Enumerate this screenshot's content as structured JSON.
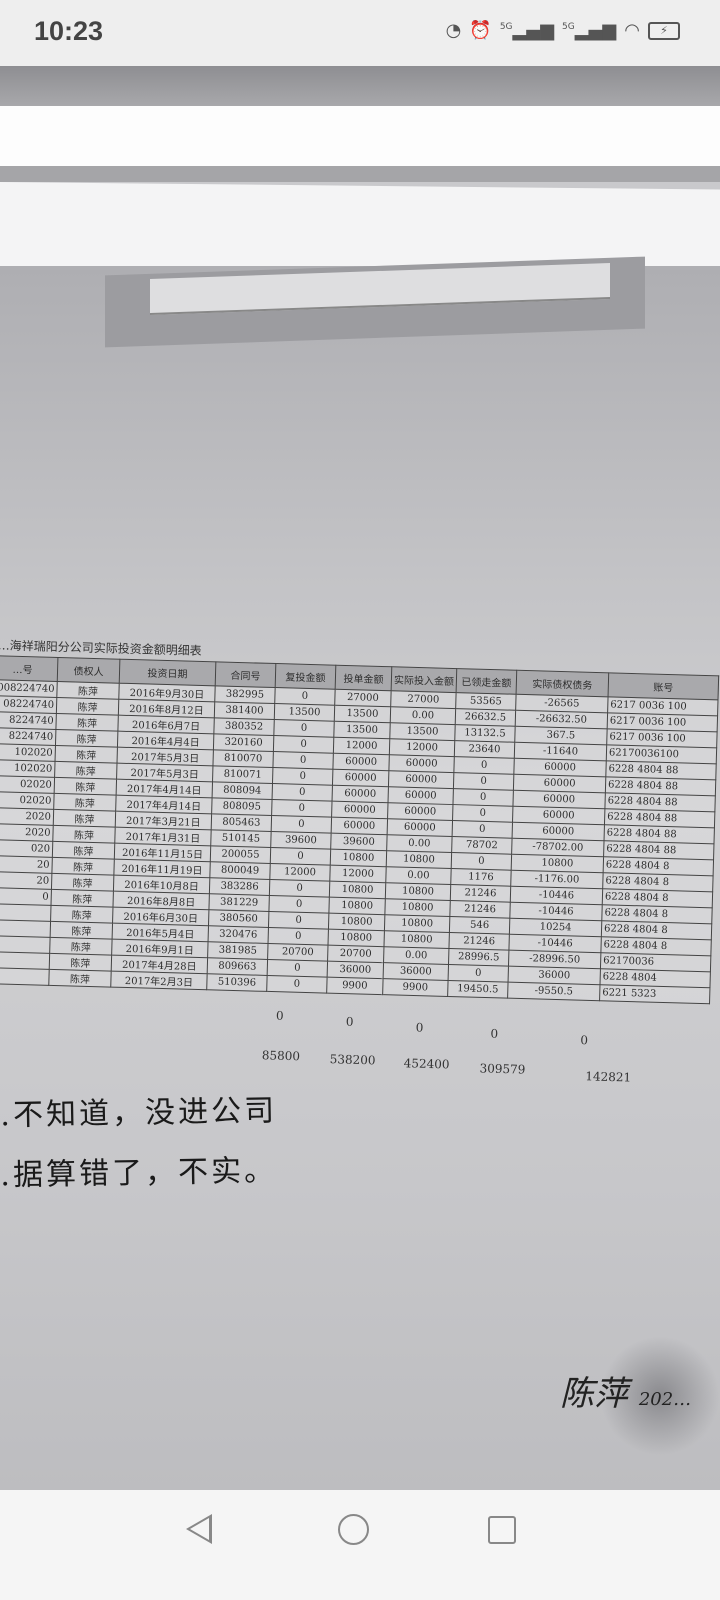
{
  "status_bar": {
    "time": "10:23",
    "icons": [
      "data-saver-icon",
      "alarm-icon",
      "signal-5g-sim1-icon",
      "signal-5g-sim2-icon",
      "wifi-icon",
      "battery-charging-icon"
    ],
    "sim1_label": "5G",
    "sim2_label": "5G"
  },
  "document": {
    "title": "…海祥瑞阳分公司实际投资金额明细表",
    "columns": [
      "…号",
      "债权人",
      "投资日期",
      "合同号",
      "复投金额",
      "投单金额",
      "实际投入金额",
      "已领走金额",
      "实际债权债务",
      "账号"
    ],
    "rows": [
      [
        "008224740",
        "陈萍",
        "2016年9月30日",
        "382995",
        "0",
        "27000",
        "27000",
        "53565",
        "-26565",
        "6217 0036 100"
      ],
      [
        "08224740",
        "陈萍",
        "2016年8月12日",
        "381400",
        "13500",
        "13500",
        "0.00",
        "26632.5",
        "-26632.50",
        "6217 0036 100"
      ],
      [
        "8224740",
        "陈萍",
        "2016年6月7日",
        "380352",
        "0",
        "13500",
        "13500",
        "13132.5",
        "367.5",
        "6217 0036 100"
      ],
      [
        "8224740",
        "陈萍",
        "2016年4月4日",
        "320160",
        "0",
        "12000",
        "12000",
        "23640",
        "-11640",
        "62170036100"
      ],
      [
        "102020",
        "陈萍",
        "2017年5月3日",
        "810070",
        "0",
        "60000",
        "60000",
        "0",
        "60000",
        "6228 4804 88"
      ],
      [
        "102020",
        "陈萍",
        "2017年5月3日",
        "810071",
        "0",
        "60000",
        "60000",
        "0",
        "60000",
        "6228 4804 88"
      ],
      [
        "02020",
        "陈萍",
        "2017年4月14日",
        "808094",
        "0",
        "60000",
        "60000",
        "0",
        "60000",
        "6228 4804 88"
      ],
      [
        "02020",
        "陈萍",
        "2017年4月14日",
        "808095",
        "0",
        "60000",
        "60000",
        "0",
        "60000",
        "6228 4804 88"
      ],
      [
        "2020",
        "陈萍",
        "2017年3月21日",
        "805463",
        "0",
        "60000",
        "60000",
        "0",
        "60000",
        "6228 4804 88"
      ],
      [
        "2020",
        "陈萍",
        "2017年1月31日",
        "510145",
        "39600",
        "39600",
        "0.00",
        "78702",
        "-78702.00",
        "6228 4804 88"
      ],
      [
        "020",
        "陈萍",
        "2016年11月15日",
        "200055",
        "0",
        "10800",
        "10800",
        "0",
        "10800",
        "6228 4804 8"
      ],
      [
        "20",
        "陈萍",
        "2016年11月19日",
        "800049",
        "12000",
        "12000",
        "0.00",
        "1176",
        "-1176.00",
        "6228 4804 8"
      ],
      [
        "20",
        "陈萍",
        "2016年10月8日",
        "383286",
        "0",
        "10800",
        "10800",
        "21246",
        "-10446",
        "6228 4804 8"
      ],
      [
        "0",
        "陈萍",
        "2016年8月8日",
        "381229",
        "0",
        "10800",
        "10800",
        "21246",
        "-10446",
        "6228 4804 8"
      ],
      [
        "",
        "陈萍",
        "2016年6月30日",
        "380560",
        "0",
        "10800",
        "10800",
        "546",
        "10254",
        "6228 4804 8"
      ],
      [
        "",
        "陈萍",
        "2016年5月4日",
        "320476",
        "0",
        "10800",
        "10800",
        "21246",
        "-10446",
        "6228 4804 8"
      ],
      [
        "",
        "陈萍",
        "2016年9月1日",
        "381985",
        "20700",
        "20700",
        "0.00",
        "28996.5",
        "-28996.50",
        "62170036"
      ],
      [
        "",
        "陈萍",
        "2017年4月28日",
        "809663",
        "0",
        "36000",
        "36000",
        "0",
        "36000",
        "6228 4804"
      ],
      [
        "",
        "陈萍",
        "2017年2月3日",
        "510396",
        "0",
        "9900",
        "9900",
        "19450.5",
        "-9550.5",
        "6221 5323"
      ]
    ],
    "zero_row": [
      "0",
      "0",
      "0",
      "0",
      "0"
    ],
    "totals": [
      "85800",
      "538200",
      "452400",
      "309579",
      "142821"
    ],
    "handwriting": [
      "…不知道，没进公司",
      "…据算错了，不实。"
    ],
    "signature": "陈萍",
    "signature_date": "202…"
  },
  "nav_bar": {
    "icons": [
      "back-icon",
      "home-icon",
      "recent-apps-icon"
    ]
  }
}
